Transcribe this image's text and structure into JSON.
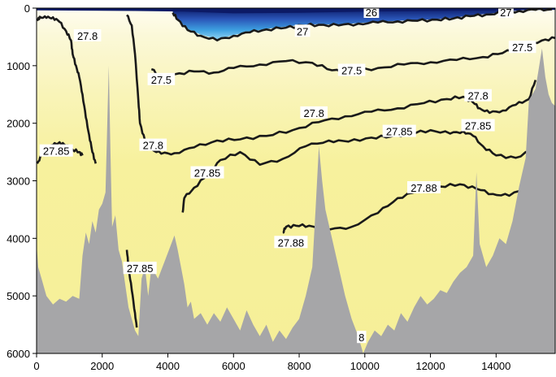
{
  "chart_data": {
    "type": "contour",
    "title": "",
    "xlabel": "",
    "ylabel": "",
    "xlim": [
      0,
      15800
    ],
    "ylim": [
      6000,
      0
    ],
    "x_ticks": [
      0,
      2000,
      4000,
      6000,
      8000,
      10000,
      12000,
      14000
    ],
    "x_tick_labels": [
      "0",
      "2000",
      "4000",
      "6000",
      "8000",
      "10000",
      "12000",
      "14000"
    ],
    "y_ticks": [
      0,
      1000,
      2000,
      3000,
      4000,
      5000,
      6000
    ],
    "y_tick_labels": [
      "0",
      "1000",
      "2000",
      "3000",
      "4000",
      "5000",
      "6000"
    ],
    "colors": {
      "field_deep": "#f7f19d",
      "field_mid": "#fbf7cc",
      "field_near_surface": "#fffdf0",
      "surface_light_blue": "#4fb9e8",
      "surface_mid_blue": "#2a7fd0",
      "surface_dark_blue": "#0c1a66",
      "contour": "#1a1a1a",
      "bathymetry": "#a6a6a8"
    },
    "contour_levels": [
      "26",
      "27",
      "27.5",
      "27.8",
      "27.85",
      "27.88"
    ],
    "contour_labels": [
      {
        "text": "26",
        "x": 10200,
        "y": 70
      },
      {
        "text": "27",
        "x": 14300,
        "y": 70
      },
      {
        "text": "27",
        "x": 8100,
        "y": 400
      },
      {
        "text": "27.5",
        "x": 14800,
        "y": 680
      },
      {
        "text": "27.8",
        "x": 1550,
        "y": 480
      },
      {
        "text": "27.5",
        "x": 3800,
        "y": 1240
      },
      {
        "text": "27.5",
        "x": 9600,
        "y": 1080
      },
      {
        "text": "27.8",
        "x": 8450,
        "y": 1820
      },
      {
        "text": "27.8",
        "x": 13450,
        "y": 1520
      },
      {
        "text": "27.85",
        "x": 11050,
        "y": 2140
      },
      {
        "text": "27.85",
        "x": 13450,
        "y": 2040
      },
      {
        "text": "27.85",
        "x": 600,
        "y": 2480
      },
      {
        "text": "27.8",
        "x": 3550,
        "y": 2380
      },
      {
        "text": "27.85",
        "x": 5200,
        "y": 2860
      },
      {
        "text": "27.88",
        "x": 11800,
        "y": 3120
      },
      {
        "text": "27.88",
        "x": 7750,
        "y": 4070
      },
      {
        "text": "27.85",
        "x": 3150,
        "y": 4520
      },
      {
        "text": "8",
        "x": 9900,
        "y": 5720
      }
    ],
    "contours": [
      {
        "level": "27",
        "points": [
          [
            4150,
            80
          ],
          [
            4300,
            200
          ],
          [
            4600,
            380
          ],
          [
            5000,
            480
          ],
          [
            5500,
            560
          ],
          [
            6000,
            480
          ],
          [
            6500,
            420
          ],
          [
            7000,
            370
          ],
          [
            7600,
            340
          ],
          [
            8100,
            300
          ],
          [
            8600,
            290
          ],
          [
            9200,
            300
          ],
          [
            9800,
            270
          ],
          [
            10400,
            250
          ],
          [
            11000,
            230
          ],
          [
            11600,
            220
          ],
          [
            12200,
            200
          ],
          [
            12700,
            180
          ],
          [
            13200,
            140
          ],
          [
            13700,
            110
          ],
          [
            14200,
            80
          ],
          [
            14700,
            50
          ],
          [
            15200,
            30
          ],
          [
            15700,
            20
          ]
        ]
      },
      {
        "level": "27.8",
        "points": [
          [
            20,
            220
          ],
          [
            100,
            150
          ],
          [
            300,
            170
          ],
          [
            500,
            160
          ],
          [
            700,
            240
          ],
          [
            900,
            400
          ],
          [
            1050,
            560
          ],
          [
            1100,
            800
          ],
          [
            1200,
            1000
          ],
          [
            1300,
            1200
          ],
          [
            1400,
            1500
          ],
          [
            1500,
            1900
          ],
          [
            1600,
            2200
          ],
          [
            1700,
            2500
          ],
          [
            1800,
            2700
          ]
        ]
      },
      {
        "level": "27.8",
        "points": [
          [
            2750,
            120
          ],
          [
            2900,
            300
          ],
          [
            3000,
            800
          ],
          [
            3100,
            1600
          ],
          [
            3150,
            2000
          ],
          [
            3300,
            2300
          ],
          [
            3500,
            2450
          ],
          [
            3800,
            2530
          ],
          [
            4200,
            2520
          ],
          [
            4800,
            2420
          ],
          [
            5500,
            2300
          ],
          [
            6200,
            2280
          ],
          [
            7000,
            2220
          ],
          [
            7800,
            2120
          ],
          [
            8600,
            1980
          ],
          [
            9400,
            1880
          ],
          [
            10200,
            1800
          ],
          [
            11000,
            1740
          ],
          [
            11800,
            1650
          ],
          [
            12500,
            1580
          ],
          [
            13000,
            1540
          ],
          [
            13300,
            1640
          ],
          [
            13500,
            1740
          ],
          [
            13800,
            1820
          ],
          [
            14200,
            1780
          ],
          [
            14600,
            1680
          ],
          [
            15000,
            1580
          ],
          [
            15200,
            1250
          ]
        ]
      },
      {
        "level": "27.5",
        "points": [
          [
            3500,
            1060
          ],
          [
            3800,
            1200
          ],
          [
            4200,
            1150
          ],
          [
            4800,
            1100
          ],
          [
            5400,
            1120
          ],
          [
            6000,
            1040
          ],
          [
            6800,
            980
          ],
          [
            7600,
            920
          ],
          [
            8400,
            950
          ],
          [
            9000,
            1080
          ],
          [
            9600,
            1100
          ],
          [
            10400,
            1040
          ],
          [
            11200,
            980
          ],
          [
            12000,
            940
          ],
          [
            12800,
            900
          ],
          [
            13600,
            850
          ],
          [
            14200,
            780
          ],
          [
            14800,
            670
          ],
          [
            15400,
            560
          ],
          [
            15800,
            520
          ]
        ]
      },
      {
        "level": "27.85",
        "points": [
          [
            20,
            2700
          ],
          [
            150,
            2560
          ],
          [
            300,
            2470
          ],
          [
            500,
            2380
          ],
          [
            700,
            2330
          ],
          [
            900,
            2390
          ],
          [
            1100,
            2460
          ],
          [
            1300,
            2500
          ],
          [
            1400,
            2560
          ]
        ]
      },
      {
        "level": "27.85",
        "points": [
          [
            4450,
            3550
          ],
          [
            4500,
            3300
          ],
          [
            4800,
            3120
          ],
          [
            5200,
            2900
          ],
          [
            5600,
            2640
          ],
          [
            6200,
            2500
          ],
          [
            6800,
            2720
          ],
          [
            7500,
            2620
          ],
          [
            8200,
            2400
          ],
          [
            8900,
            2300
          ],
          [
            9500,
            2320
          ],
          [
            10200,
            2250
          ],
          [
            10800,
            2230
          ],
          [
            11400,
            2180
          ],
          [
            12000,
            2120
          ],
          [
            12600,
            2180
          ],
          [
            13000,
            2140
          ],
          [
            13300,
            2220
          ],
          [
            13600,
            2400
          ],
          [
            14000,
            2560
          ],
          [
            14600,
            2600
          ],
          [
            15200,
            2450
          ],
          [
            15500,
            2200
          ]
        ]
      },
      {
        "level": "27.88",
        "points": [
          [
            7500,
            3900
          ],
          [
            7600,
            3800
          ],
          [
            7900,
            3780
          ],
          [
            8300,
            3780
          ],
          [
            8900,
            3850
          ],
          [
            9600,
            3800
          ],
          [
            10400,
            3560
          ],
          [
            11000,
            3300
          ],
          [
            11600,
            3180
          ],
          [
            12300,
            3100
          ],
          [
            12900,
            3060
          ],
          [
            13400,
            3140
          ],
          [
            13900,
            3230
          ],
          [
            14400,
            3260
          ],
          [
            15000,
            3100
          ],
          [
            15600,
            2700
          ]
        ]
      },
      {
        "level": "27.85",
        "points": [
          [
            2750,
            4200
          ],
          [
            2800,
            4500
          ],
          [
            2900,
            4900
          ],
          [
            3000,
            5300
          ],
          [
            3050,
            5550
          ]
        ]
      }
    ]
  }
}
